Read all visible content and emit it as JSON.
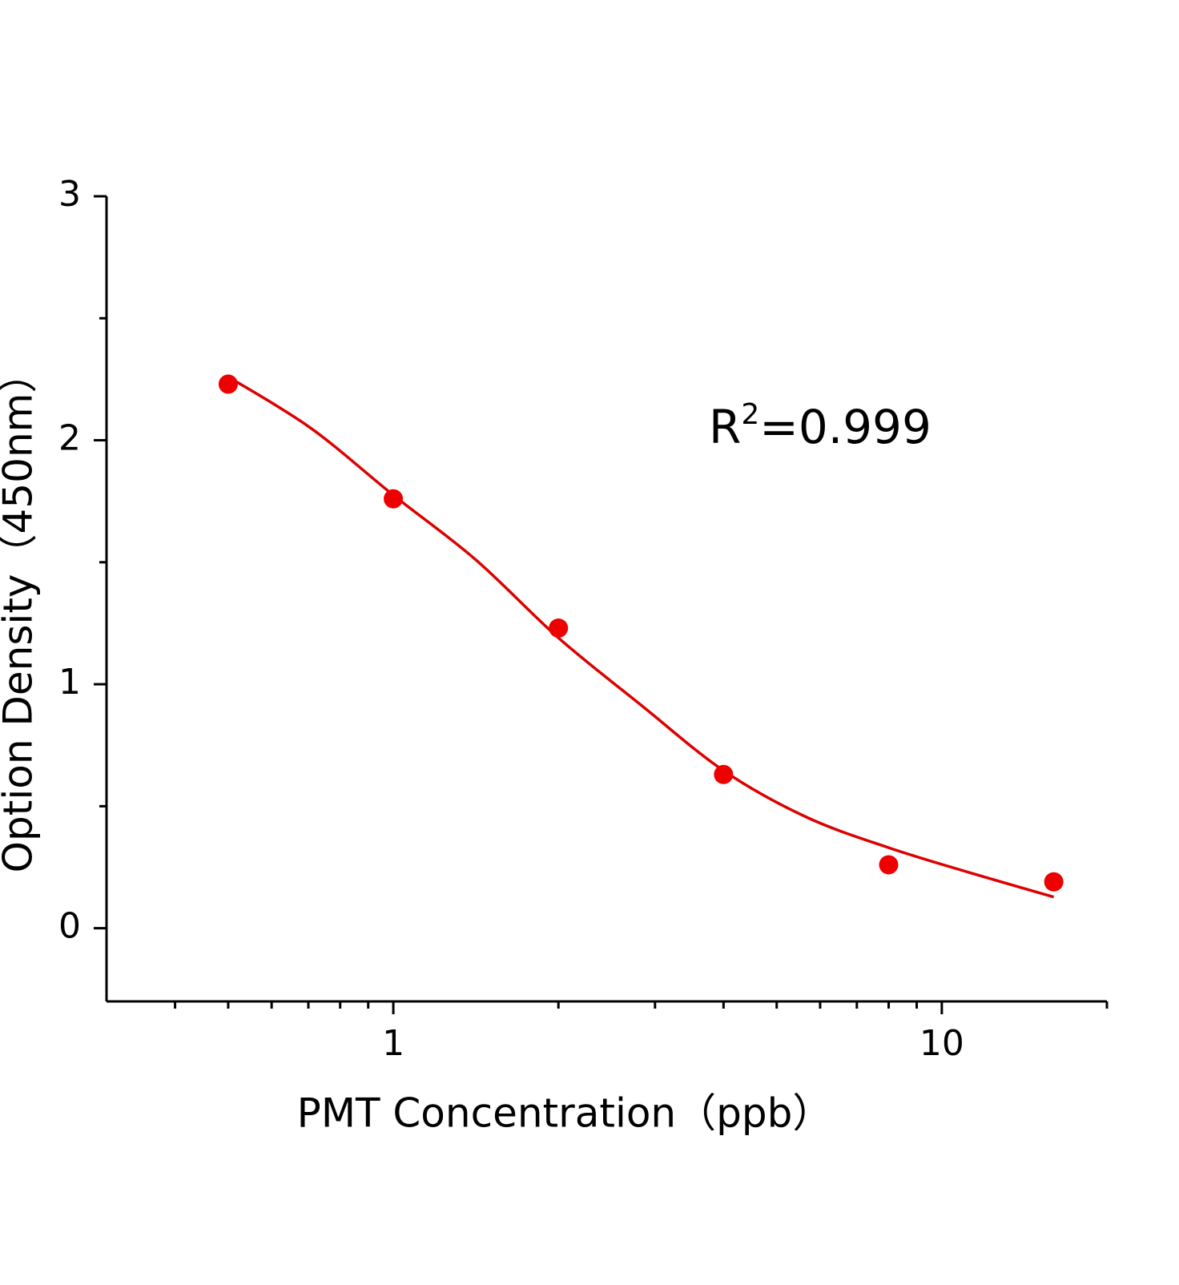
{
  "chart_data": {
    "type": "scatter",
    "xlabel": "PMT  Concentration（ppb）",
    "ylabel": "Option Density（450nm）",
    "annotation": [
      "R",
      "2",
      "=0.999"
    ],
    "xscale": "log",
    "xlim": [
      0.3,
      20
    ],
    "xticks": [
      1,
      10
    ],
    "xminorticks": [
      0.4,
      0.5,
      0.6,
      0.7,
      0.8,
      0.9,
      2,
      3,
      4,
      5,
      6,
      7,
      8,
      9,
      20
    ],
    "ylim": [
      -0.3,
      3
    ],
    "yticks": [
      0,
      1,
      2,
      3
    ],
    "yminorticks": [
      0.5,
      1.5,
      2.5
    ],
    "series": [
      {
        "style": "markers",
        "color": "#ee0000",
        "x": [
          0.5,
          1,
          2,
          4,
          8,
          16
        ],
        "values": [
          2.23,
          1.76,
          1.23,
          0.63,
          0.26,
          0.19
        ]
      },
      {
        "style": "line",
        "color": "#dd0000",
        "x": [
          0.5,
          0.707,
          1,
          1.414,
          2,
          2.828,
          4,
          5.657,
          8,
          11.31,
          16
        ],
        "values": [
          2.26,
          2.05,
          1.775,
          1.51,
          1.19,
          0.915,
          0.646,
          0.456,
          0.33,
          0.226,
          0.128
        ]
      }
    ]
  }
}
